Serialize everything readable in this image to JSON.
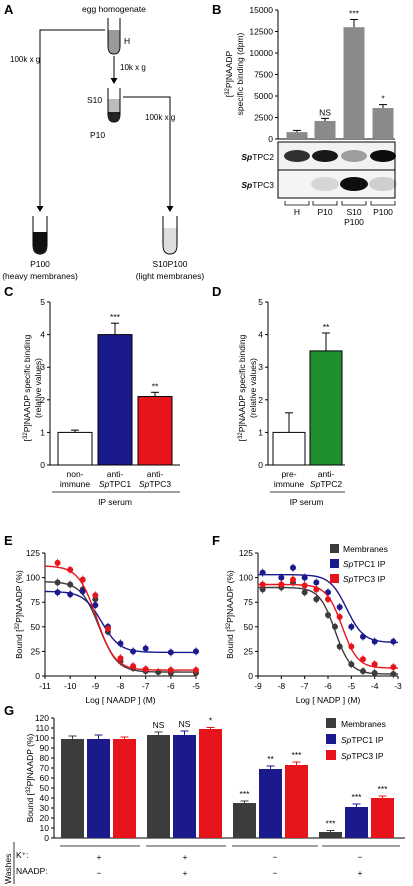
{
  "panels": {
    "A": "A",
    "B": "B",
    "C": "C",
    "D": "D",
    "E": "E",
    "F": "F",
    "G": "G"
  },
  "panel_a": {
    "egg_homogenate": "egg homogenate",
    "h": "H",
    "spin_10k": "10k x g",
    "s10": "S10",
    "p10": "P10",
    "spin_100k_left": "100k x g",
    "spin_100k_right": "100k x g",
    "p100": "P100",
    "p100_sub": "(heavy membranes)",
    "s10p100": "S10P100",
    "s10p100_sub": "(light membranes)"
  },
  "colors": {
    "dark": "#3c3c3c",
    "grey": "#8a8a8a",
    "blue": "#1a1a8c",
    "red": "#e8141b",
    "green": "#1f8f2f",
    "white": "#ffffff"
  },
  "blot": {
    "sp_tpc2_italic": "Sp",
    "sp_tpc2_rest": "TPC2",
    "sp_tpc3_italic": "Sp",
    "sp_tpc3_rest": "TPC3"
  },
  "legend_f": [
    "Membranes",
    "SpTPC1 IP",
    "SpTPC3 IP"
  ],
  "legend_g": [
    "Membranes",
    "SpTPC1 IP",
    "SpTPC3 IP"
  ],
  "panel_g": {
    "washes": "Washes",
    "k_label": "K⁺:",
    "naadp_label": "NAADP:",
    "groups": [
      {
        "k": "+",
        "naadp": "−"
      },
      {
        "k": "+",
        "naadp": "+"
      },
      {
        "k": "−",
        "naadp": "−"
      },
      {
        "k": "−",
        "naadp": "+"
      }
    ]
  },
  "chart_data": [
    {
      "panel": "B",
      "type": "bar",
      "categories": [
        "H",
        "P10",
        "S10\nP100",
        "P100"
      ],
      "values": [
        800,
        2100,
        13000,
        3600
      ],
      "errors": [
        200,
        300,
        900,
        400
      ],
      "significance": [
        "",
        "NS",
        "***",
        "*"
      ],
      "ylabel": "[32P]NAADP specific binding (dpm)",
      "ylim": [
        0,
        15000
      ],
      "yticks": [
        0,
        2500,
        5000,
        7500,
        10000,
        12500,
        15000
      ],
      "color": "#8a8a8a"
    },
    {
      "panel": "C",
      "type": "bar",
      "categories": [
        "non-immune",
        "anti-SpTPC1",
        "anti-SpTPC3"
      ],
      "values": [
        1.0,
        4.0,
        2.1
      ],
      "errors": [
        0.07,
        0.35,
        0.13
      ],
      "significance": [
        "",
        "***",
        "**"
      ],
      "colors": [
        "#ffffff",
        "#1a1a8c",
        "#e8141b"
      ],
      "ylabel": "[32P]NAADP specific binding (relative values)",
      "xlabel": "IP serum",
      "ylim": [
        0,
        5
      ],
      "yticks": [
        0,
        1,
        2,
        3,
        4,
        5
      ]
    },
    {
      "panel": "D",
      "type": "bar",
      "categories": [
        "pre-immune",
        "anti-SpTPC2"
      ],
      "values": [
        1.0,
        3.5
      ],
      "errors": [
        0.6,
        0.55
      ],
      "significance": [
        "",
        "**"
      ],
      "colors": [
        "#ffffff",
        "#1f8f2f"
      ],
      "ylabel": "[32P]NAADP specific binding (relative values)",
      "xlabel": "IP serum",
      "ylim": [
        0,
        5
      ],
      "yticks": [
        0,
        1,
        2,
        3,
        4,
        5
      ]
    },
    {
      "panel": "E",
      "type": "scatter",
      "xlabel": "Log [ NAADP ] (M)",
      "ylabel": "Bound [32P]NAADP (%)",
      "xlim": [
        -11,
        -5
      ],
      "ylim": [
        0,
        125
      ],
      "xticks": [
        -11,
        -10,
        -9,
        -8,
        -7,
        -6,
        -5
      ],
      "yticks": [
        0,
        25,
        50,
        75,
        100,
        125
      ],
      "series": [
        {
          "name": "Membranes",
          "color": "#3c3c3c",
          "x": [
            -10.5,
            -10,
            -9.5,
            -9,
            -8.5,
            -8,
            -7.5,
            -7,
            -6.5,
            -6,
            -5
          ],
          "y": [
            95,
            93,
            88,
            78,
            45,
            15,
            8,
            5,
            4,
            3,
            3
          ],
          "fit": {
            "top": 96,
            "bottom": 4,
            "logec50": -8.85,
            "hill": 1.2
          }
        },
        {
          "name": "SpTPC1 IP",
          "color": "#1a1a8c",
          "x": [
            -10.5,
            -10,
            -9.5,
            -9,
            -8.5,
            -8,
            -7.5,
            -7,
            -6,
            -5
          ],
          "y": [
            85,
            83,
            86,
            72,
            50,
            33,
            25,
            28,
            24,
            25
          ],
          "fit": {
            "top": 86,
            "bottom": 24,
            "logec50": -8.75,
            "hill": 1.2
          }
        },
        {
          "name": "SpTPC3 IP",
          "color": "#e8141b",
          "x": [
            -10.5,
            -10,
            -9.5,
            -9,
            -8.5,
            -8,
            -7.5,
            -7,
            -6,
            -5
          ],
          "y": [
            115,
            108,
            98,
            82,
            48,
            18,
            10,
            7,
            6,
            6
          ],
          "fit": {
            "top": 112,
            "bottom": 6,
            "logec50": -8.95,
            "hill": 1.2
          }
        }
      ]
    },
    {
      "panel": "F",
      "type": "scatter",
      "xlabel": "Log [ NADP ] (M)",
      "ylabel": "Bound [32P]NAADP (%)",
      "xlim": [
        -9,
        -3
      ],
      "ylim": [
        0,
        125
      ],
      "xticks": [
        -9,
        -8,
        -7,
        -6,
        -5,
        -4,
        -3
      ],
      "yticks": [
        0,
        25,
        50,
        75,
        100,
        125
      ],
      "series": [
        {
          "name": "Membranes",
          "color": "#3c3c3c",
          "x": [
            -8.8,
            -8,
            -7.5,
            -7,
            -6.5,
            -6,
            -5.7,
            -5.5,
            -5,
            -4.5,
            -4,
            -3.2
          ],
          "y": [
            88,
            90,
            95,
            85,
            78,
            62,
            50,
            30,
            12,
            5,
            3,
            2
          ],
          "fit": {
            "top": 90,
            "bottom": 2,
            "logec50": -5.7,
            "hill": 1.3
          }
        },
        {
          "name": "SpTPC1 IP",
          "color": "#1a1a8c",
          "x": [
            -8.8,
            -8,
            -7.5,
            -7,
            -6.5,
            -6,
            -5.5,
            -5,
            -4.5,
            -4,
            -3.2
          ],
          "y": [
            105,
            100,
            110,
            100,
            95,
            85,
            70,
            50,
            40,
            35,
            35
          ],
          "fit": {
            "top": 103,
            "bottom": 34,
            "logec50": -5.2,
            "hill": 1.2
          }
        },
        {
          "name": "SpTPC3 IP",
          "color": "#e8141b",
          "x": [
            -8.8,
            -8,
            -7.5,
            -7,
            -6.5,
            -6,
            -5.5,
            -5,
            -4.5,
            -4,
            -3.2
          ],
          "y": [
            93,
            93,
            98,
            92,
            88,
            78,
            60,
            30,
            17,
            12,
            9
          ],
          "fit": {
            "top": 93,
            "bottom": 8,
            "logec50": -5.4,
            "hill": 1.3
          }
        }
      ]
    },
    {
      "panel": "G",
      "type": "bar",
      "ylabel": "Bound [32P]NAADP (%)",
      "ylim": [
        0,
        120
      ],
      "yticks": [
        0,
        10,
        20,
        30,
        40,
        50,
        60,
        70,
        80,
        90,
        100,
        110,
        120
      ],
      "groups": 4,
      "series": [
        {
          "name": "Membranes",
          "color": "#3c3c3c",
          "values": [
            99,
            103,
            35,
            6
          ],
          "errors": [
            3,
            3,
            2,
            1.5
          ],
          "significance": [
            "",
            "NS",
            "***",
            "***"
          ]
        },
        {
          "name": "SpTPC1 IP",
          "color": "#1a1a8c",
          "values": [
            99,
            103,
            69,
            31
          ],
          "errors": [
            4,
            4,
            3,
            3
          ],
          "significance": [
            "",
            "NS",
            "**",
            "***"
          ]
        },
        {
          "name": "SpTPC3 IP",
          "color": "#e8141b",
          "values": [
            99,
            109,
            73,
            40
          ],
          "errors": [
            2,
            1.5,
            3,
            2
          ],
          "significance": [
            "",
            "*",
            "***",
            "***"
          ]
        }
      ]
    }
  ]
}
